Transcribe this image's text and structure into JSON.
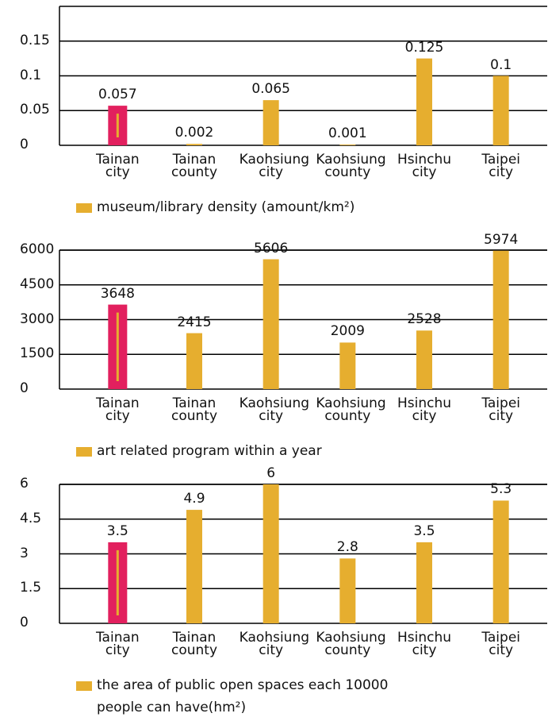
{
  "chart_data": [
    {
      "type": "bar",
      "categories": [
        "Tainan city",
        "Tainan county",
        "Kaohsiung city",
        "Kaohsiung county",
        "Hsinchu city",
        "Taipei city"
      ],
      "series": [
        {
          "name": "museum/library density (amount/km²)",
          "color": "#e6ae2f",
          "values": [
            0.057,
            0.002,
            0.065,
            0.001,
            0.125,
            0.1
          ]
        }
      ],
      "colors": [
        "#e2205e",
        "#e6ae2f",
        "#e6ae2f",
        "#e6ae2f",
        "#e6ae2f",
        "#e6ae2f"
      ],
      "ylim": [
        0,
        0.2
      ],
      "yticks": [
        0,
        0.05,
        0.1,
        0.15
      ],
      "grid": true
    },
    {
      "type": "bar",
      "categories": [
        "Tainan city",
        "Tainan county",
        "Kaohsiung city",
        "Kaohsiung county",
        "Hsinchu city",
        "Taipei city"
      ],
      "series": [
        {
          "name": "art related program within a year",
          "color": "#e6ae2f",
          "values": [
            3648,
            2415,
            5606,
            2009,
            2528,
            5974
          ]
        }
      ],
      "colors": [
        "#e2205e",
        "#e6ae2f",
        "#e6ae2f",
        "#e6ae2f",
        "#e6ae2f",
        "#e6ae2f"
      ],
      "ylim": [
        0,
        6000
      ],
      "yticks": [
        0,
        1500,
        3000,
        4500,
        6000
      ],
      "grid": true
    },
    {
      "type": "bar",
      "categories": [
        "Tainan city",
        "Tainan county",
        "Kaohsiung city",
        "Kaohsiung county",
        "Hsinchu city",
        "Taipei city"
      ],
      "series": [
        {
          "name": "the area of public open spaces each 10000 people can have(hm²)",
          "color": "#e6ae2f",
          "values": [
            3.5,
            4.9,
            6,
            2.8,
            3.5,
            5.3
          ]
        }
      ],
      "colors": [
        "#e2205e",
        "#e6ae2f",
        "#e6ae2f",
        "#e6ae2f",
        "#e6ae2f",
        "#e6ae2f"
      ],
      "ylim": [
        0,
        6
      ],
      "yticks": [
        0,
        1.5,
        3,
        4.5,
        6
      ],
      "grid": true
    }
  ]
}
